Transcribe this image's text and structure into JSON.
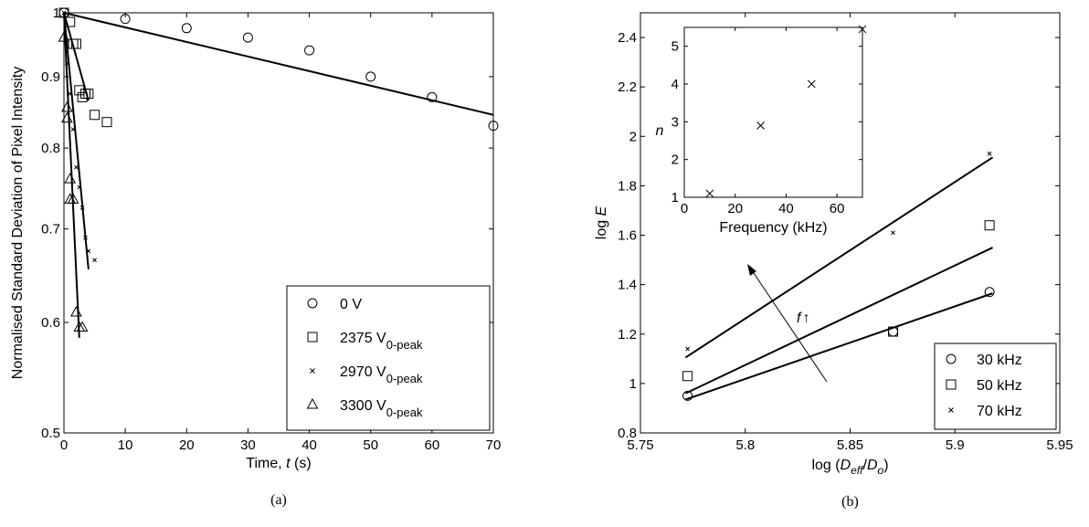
{
  "panels": [
    {
      "caption": "(a)",
      "type": "scatter",
      "xlabel_parts": [
        "Time,  ",
        "t",
        " (s)"
      ],
      "ylabel": "Normalised Standard Deviation of Pixel Intensity",
      "xlim": [
        0,
        70
      ],
      "ylim": [
        0.5,
        1
      ],
      "yscale": "log",
      "xticks": [
        0,
        10,
        20,
        30,
        40,
        50,
        60,
        70
      ],
      "yticks": [
        0.5,
        0.6,
        0.7,
        0.8,
        0.9,
        1
      ],
      "xtick_labels": [
        "0",
        "10",
        "20",
        "30",
        "40",
        "50",
        "60",
        "70"
      ],
      "ytick_labels": [
        "0.5",
        "0.6",
        "0.7",
        "0.8",
        "0.9",
        "1"
      ],
      "legend_position": "bottom-right",
      "series": [
        {
          "label_main": "0 V",
          "label_sub": "",
          "marker": "circle",
          "x": [
            0,
            10,
            20,
            30,
            40,
            50,
            60,
            70
          ],
          "y": [
            1.0,
            0.99,
            0.975,
            0.96,
            0.94,
            0.9,
            0.87,
            0.83
          ],
          "fit_x": [
            0,
            70
          ],
          "fit_y": [
            1.0,
            0.845
          ]
        },
        {
          "label_main": "2375 V",
          "label_sub": "0-peak",
          "marker": "square",
          "x": [
            0,
            1,
            1.5,
            2,
            2.5,
            3,
            3.5,
            4,
            5,
            7
          ],
          "y": [
            1.0,
            0.985,
            0.95,
            0.95,
            0.88,
            0.87,
            0.875,
            0.875,
            0.845,
            0.835
          ],
          "fit_x": [
            0,
            4
          ],
          "fit_y": [
            1.0,
            0.865
          ]
        },
        {
          "label_main": "2970 V",
          "label_sub": "0-peak",
          "marker": "x",
          "x": [
            0,
            0.5,
            1,
            1.5,
            2,
            2.5,
            3,
            3.5,
            4,
            5
          ],
          "y": [
            1.0,
            0.92,
            0.875,
            0.825,
            0.775,
            0.75,
            0.725,
            0.69,
            0.675,
            0.665
          ],
          "fit_x": [
            0,
            4
          ],
          "fit_y": [
            1.0,
            0.655
          ]
        },
        {
          "label_main": "3300 V",
          "label_sub": "0-peak",
          "marker": "triangle",
          "x": [
            0,
            0.5,
            0.5,
            1,
            1,
            1.5,
            2,
            2.5,
            3
          ],
          "y": [
            0.96,
            0.855,
            0.84,
            0.76,
            0.735,
            0.735,
            0.61,
            0.595,
            0.595
          ],
          "fit_x": [
            0,
            2.5
          ],
          "fit_y": [
            1.0,
            0.585
          ]
        }
      ]
    },
    {
      "caption": "(b)",
      "type": "scatter",
      "xlabel_parts": [
        "log (",
        "D",
        "eff",
        "/",
        "D",
        "o",
        ")"
      ],
      "ylabel_parts": [
        "log ",
        "E"
      ],
      "xlim": [
        5.75,
        5.95
      ],
      "ylim": [
        0.8,
        2.5
      ],
      "xticks": [
        5.75,
        5.8,
        5.85,
        5.9,
        5.95
      ],
      "yticks": [
        0.8,
        1,
        1.2,
        1.4,
        1.6,
        1.8,
        2,
        2.2,
        2.4
      ],
      "xtick_labels": [
        "5.75",
        "5.8",
        "5.85",
        "5.9",
        "5.95"
      ],
      "ytick_labels": [
        "0.8",
        "1",
        "1.2",
        "1.4",
        "1.6",
        "1.8",
        "2",
        "2.2",
        "2.4"
      ],
      "legend_position": "bottom-right",
      "annotation": "f",
      "annotation_arrow": "↑",
      "series": [
        {
          "label": "30 kHz",
          "marker": "circle",
          "x": [
            5.7725,
            5.8705,
            5.9165
          ],
          "y": [
            0.95,
            1.21,
            1.37
          ],
          "fit_x": [
            5.7715,
            5.918
          ],
          "fit_y": [
            0.935,
            1.365
          ]
        },
        {
          "label": "50 kHz",
          "marker": "square",
          "x": [
            5.7725,
            5.8705,
            5.9165
          ],
          "y": [
            1.03,
            1.21,
            1.64
          ],
          "fit_x": [
            5.7715,
            5.918
          ],
          "fit_y": [
            0.96,
            1.55
          ]
        },
        {
          "label": "70 kHz",
          "marker": "x",
          "x": [
            5.7725,
            5.8705,
            5.9165
          ],
          "y": [
            1.14,
            1.61,
            1.93
          ],
          "fit_x": [
            5.7715,
            5.918
          ],
          "fit_y": [
            1.105,
            1.915
          ]
        }
      ],
      "inset": {
        "xlabel": "Frequency (kHz)",
        "ylabel": "n",
        "xlim": [
          0,
          70
        ],
        "ylim": [
          1,
          5.5
        ],
        "xticks": [
          0,
          20,
          40,
          60
        ],
        "yticks": [
          1,
          2,
          3,
          4,
          5
        ],
        "xtick_labels": [
          "0",
          "20",
          "40",
          "60"
        ],
        "ytick_labels": [
          "1",
          "2",
          "3",
          "4",
          "5"
        ],
        "points": {
          "marker": "x",
          "x": [
            10,
            30,
            50,
            70
          ],
          "y": [
            1.1,
            2.9,
            4.0,
            5.45
          ]
        }
      }
    }
  ]
}
